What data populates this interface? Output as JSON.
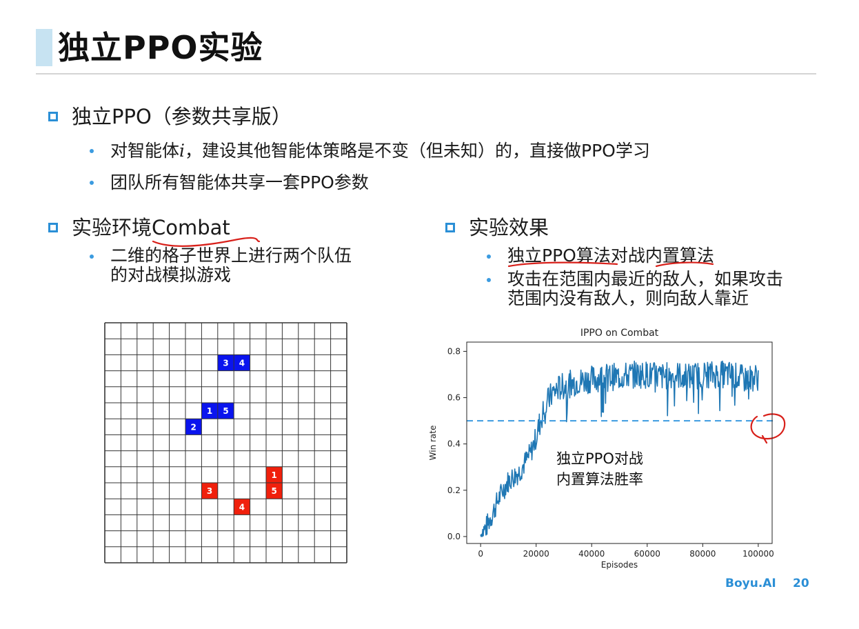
{
  "slide": {
    "title": "独立PPO实验",
    "footer_brand": "Boyu.AI",
    "page_number": "20"
  },
  "section1": {
    "heading": "独立PPO（参数共享版）",
    "bullets": [
      {
        "pre": "对智能体",
        "var": "i",
        "post": "，建设其他智能体策略是不变（但未知）的，直接做PPO学习"
      },
      {
        "text": "团队所有智能体共享一套PPO参数"
      }
    ]
  },
  "section2": {
    "heading": "实验环境Combat",
    "bullet_line1": "二维的格子世界上进行两个队伍",
    "bullet_line2": "的对战模拟游戏"
  },
  "section3": {
    "heading": "实验效果",
    "bullet1": "独立PPO算法对战内置算法",
    "bullet2_line1": "攻击在范围内最近的敌人，如果攻击",
    "bullet2_line2": "范围内没有敌人，则向敌人靠近"
  },
  "grid": {
    "rows": 15,
    "cols": 15,
    "colors": {
      "blue": "#0a14ee",
      "red": "#f0200c"
    },
    "agents": [
      {
        "team": "blue",
        "label": "3",
        "row": 2,
        "col": 7
      },
      {
        "team": "blue",
        "label": "4",
        "row": 2,
        "col": 8
      },
      {
        "team": "blue",
        "label": "1",
        "row": 5,
        "col": 6
      },
      {
        "team": "blue",
        "label": "5",
        "row": 5,
        "col": 7
      },
      {
        "team": "blue",
        "label": "2",
        "row": 6,
        "col": 5
      },
      {
        "team": "red",
        "label": "1",
        "row": 9,
        "col": 10
      },
      {
        "team": "red",
        "label": "3",
        "row": 10,
        "col": 6
      },
      {
        "team": "red",
        "label": "5",
        "row": 10,
        "col": 10
      },
      {
        "team": "red",
        "label": "4",
        "row": 11,
        "col": 8
      }
    ]
  },
  "chart_data": {
    "type": "line",
    "title": "IPPO on Combat",
    "xlabel": "Episodes",
    "ylabel": "Win rate",
    "xlim": [
      -5000,
      105000
    ],
    "ylim": [
      -0.03,
      0.84
    ],
    "xticks": [
      0,
      20000,
      40000,
      60000,
      80000,
      100000
    ],
    "xtick_labels": [
      "0",
      "20000",
      "40000",
      "60000",
      "80000",
      "100000"
    ],
    "yticks": [
      0.0,
      0.2,
      0.4,
      0.6,
      0.8
    ],
    "ytick_labels": [
      "0.0",
      "0.2",
      "0.4",
      "0.6",
      "0.8"
    ],
    "baseline": 0.5,
    "annotation_line1": "独立PPO对战",
    "annotation_line2": "内置算法胜率",
    "series": [
      {
        "color": "#1f77b4",
        "x": [
          0,
          2000,
          4000,
          6000,
          8000,
          10000,
          12000,
          14000,
          16000,
          18000,
          20000,
          22000,
          24000,
          26000,
          28000,
          30000,
          35000,
          40000,
          45000,
          50000,
          55000,
          60000,
          65000,
          70000,
          75000,
          80000,
          85000,
          90000,
          95000,
          100000
        ],
        "y": [
          0.01,
          0.04,
          0.09,
          0.15,
          0.2,
          0.24,
          0.26,
          0.28,
          0.32,
          0.36,
          0.43,
          0.52,
          0.58,
          0.62,
          0.64,
          0.65,
          0.67,
          0.68,
          0.69,
          0.69,
          0.7,
          0.7,
          0.69,
          0.7,
          0.69,
          0.7,
          0.7,
          0.7,
          0.68,
          0.69
        ]
      }
    ]
  },
  "annotations": {
    "ink_color": "#d8201a"
  }
}
